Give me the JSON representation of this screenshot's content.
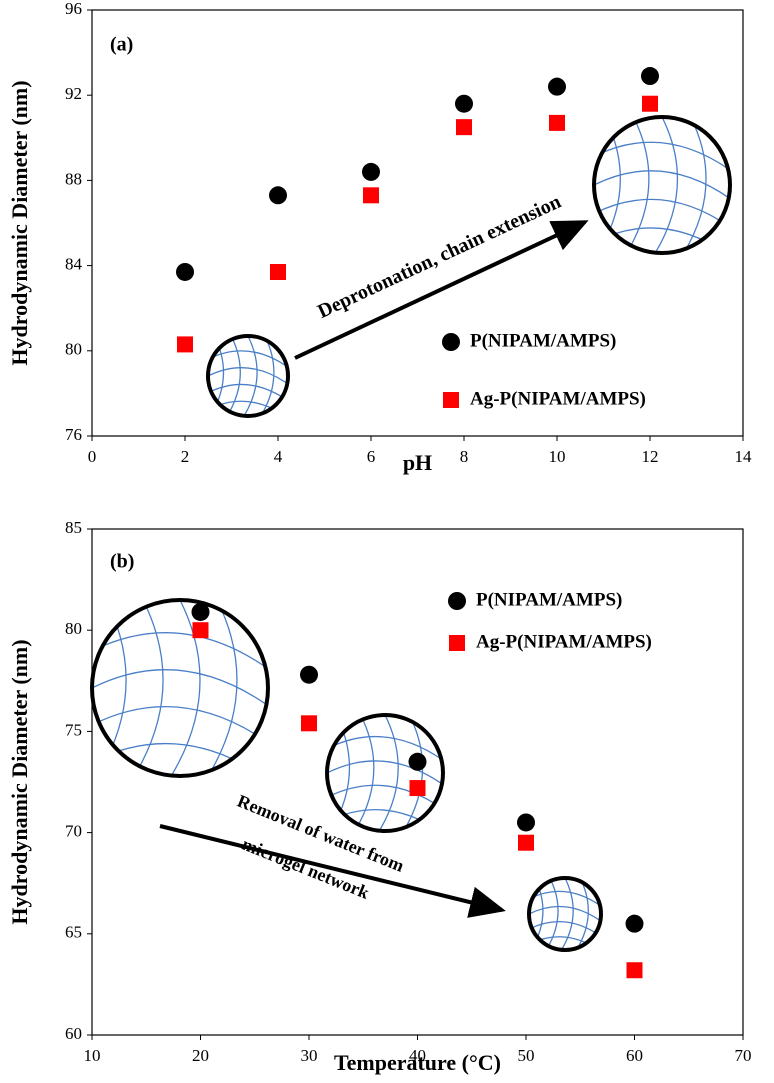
{
  "chart_data": [
    {
      "type": "scatter",
      "annotations": [
        "(a)",
        "Deprotonation, chain extension"
      ],
      "x_label": "pH",
      "y_label": "Hydrodynamic Diameter (nm)",
      "xlim": [
        0,
        14
      ],
      "xticks": [
        0,
        2,
        4,
        6,
        8,
        10,
        12,
        14
      ],
      "ylim": [
        76,
        96
      ],
      "yticks": [
        76,
        80,
        84,
        88,
        92,
        96
      ],
      "legend": "lower right",
      "series": [
        {
          "name": "P(NIPAM/AMPS)",
          "color": "#000000",
          "marker": "circle",
          "x": [
            2,
            4,
            6,
            8,
            10,
            12
          ],
          "values": [
            83.7,
            87.3,
            88.4,
            91.6,
            92.4,
            92.9
          ]
        },
        {
          "name": "Ag-P(NIPAM/AMPS)",
          "color": "#ff0000",
          "marker": "square",
          "x": [
            2,
            4,
            6,
            8,
            10,
            12
          ],
          "values": [
            80.3,
            83.7,
            87.3,
            90.5,
            90.7,
            91.6
          ]
        }
      ]
    },
    {
      "type": "scatter",
      "annotations": [
        "(b)",
        "Removal of water from",
        "microgel network"
      ],
      "x_label": "Temperature (°C)",
      "y_label": "Hydrodynamic Diameter (nm)",
      "xlim": [
        10,
        70
      ],
      "xticks": [
        10,
        20,
        30,
        40,
        50,
        60,
        70
      ],
      "ylim": [
        60,
        85
      ],
      "yticks": [
        60,
        65,
        70,
        75,
        80,
        85
      ],
      "legend": "upper right",
      "series": [
        {
          "name": "P(NIPAM/AMPS)",
          "color": "#000000",
          "marker": "circle",
          "x": [
            20,
            30,
            40,
            50,
            60
          ],
          "values": [
            80.9,
            77.8,
            73.5,
            70.5,
            65.5
          ]
        },
        {
          "name": "Ag-P(NIPAM/AMPS)",
          "color": "#ff0000",
          "marker": "square",
          "x": [
            20,
            30,
            40,
            50,
            60
          ],
          "values": [
            80.0,
            75.4,
            72.2,
            69.5,
            63.2
          ]
        }
      ]
    }
  ]
}
